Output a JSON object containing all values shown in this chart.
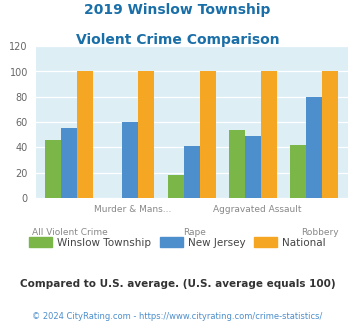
{
  "title_line1": "2019 Winslow Township",
  "title_line2": "Violent Crime Comparison",
  "categories": [
    "All Violent Crime",
    "Murder & Mans...",
    "Rape",
    "Aggravated Assault",
    "Robbery"
  ],
  "label_top": [
    "",
    "Murder & Mans...",
    "",
    "Aggravated Assault",
    ""
  ],
  "label_bot": [
    "All Violent Crime",
    "",
    "Rape",
    "",
    "Robbery"
  ],
  "winslow": [
    46,
    0,
    18,
    54,
    42
  ],
  "nj": [
    55,
    60,
    41,
    49,
    80
  ],
  "national": [
    100,
    100,
    100,
    100,
    100
  ],
  "winslow_color": "#7ab648",
  "nj_color": "#4d8fcc",
  "national_color": "#f5a623",
  "bg_color": "#ddeef5",
  "title_color": "#1a6fa8",
  "ylim": [
    0,
    120
  ],
  "yticks": [
    0,
    20,
    40,
    60,
    80,
    100,
    120
  ],
  "legend_labels": [
    "Winslow Township",
    "New Jersey",
    "National"
  ],
  "footnote1": "Compared to U.S. average. (U.S. average equals 100)",
  "footnote2": "© 2024 CityRating.com - https://www.cityrating.com/crime-statistics/",
  "footnote1_color": "#333333",
  "footnote2_color": "#4d8fcc"
}
